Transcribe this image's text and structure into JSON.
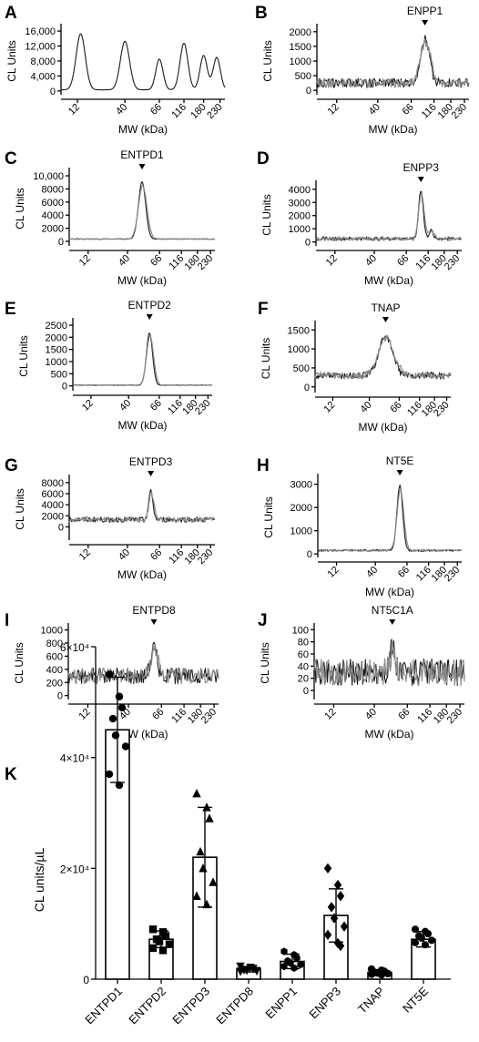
{
  "chart_data": [
    {
      "panel": "A",
      "type": "line",
      "title": "",
      "xlabel": "MW (kDa)",
      "ylabel": "CL Units",
      "yticks": [
        "16,000",
        "12,000",
        "8,000",
        "4,000",
        "0"
      ],
      "ytick_values": [
        16000,
        12000,
        8000,
        4000,
        0
      ],
      "ylim": [
        -1000,
        17000
      ],
      "xticks": [
        "12",
        "40",
        "66",
        "116",
        "180",
        "230"
      ],
      "xtick_pos": [
        0.1,
        0.39,
        0.6,
        0.75,
        0.87,
        0.97
      ],
      "peaks": [
        {
          "x": 0.12,
          "height": 15000,
          "width": 0.028
        },
        {
          "x": 0.39,
          "height": 13000,
          "width": 0.028
        },
        {
          "x": 0.6,
          "height": 8200,
          "width": 0.022
        },
        {
          "x": 0.75,
          "height": 12500,
          "width": 0.024
        },
        {
          "x": 0.87,
          "height": 9200,
          "width": 0.022
        },
        {
          "x": 0.95,
          "height": 8700,
          "width": 0.022
        }
      ],
      "baseline": 300,
      "noise": 0,
      "traces": 1
    },
    {
      "panel": "B",
      "type": "line",
      "title": "ENPP1",
      "xlabel": "MW (kDa)",
      "ylabel": "CL Units",
      "yticks": [
        "2000",
        "1500",
        "1000",
        "500",
        "0"
      ],
      "ytick_values": [
        2000,
        1500,
        1000,
        500,
        0
      ],
      "ylim": [
        -150,
        2150
      ],
      "xticks": [
        "12",
        "40",
        "66",
        "116",
        "180",
        "230"
      ],
      "xtick_pos": [
        0.13,
        0.4,
        0.62,
        0.77,
        0.88,
        0.97
      ],
      "peaks": [
        {
          "x": 0.71,
          "height": 1500,
          "width": 0.03
        }
      ],
      "baseline": 250,
      "noise": 160,
      "traces": 2,
      "marker_x": 0.71
    },
    {
      "panel": "C",
      "type": "line",
      "title": "ENTPD1",
      "xlabel": "MW (kDa)",
      "ylabel": "CL Units",
      "yticks": [
        "10,000",
        "8000",
        "6000",
        "4000",
        "2000",
        "0"
      ],
      "ytick_values": [
        10000,
        8000,
        6000,
        4000,
        2000,
        0
      ],
      "ylim": [
        -700,
        10700
      ],
      "xticks": [
        "12",
        "40",
        "66",
        "116",
        "180",
        "230"
      ],
      "xtick_pos": [
        0.13,
        0.4,
        0.62,
        0.77,
        0.88,
        0.97
      ],
      "peaks": [
        {
          "x": 0.5,
          "height": 8700,
          "width": 0.025
        }
      ],
      "baseline": 350,
      "noise": 60,
      "traces": 2,
      "marker_x": 0.5
    },
    {
      "panel": "D",
      "type": "line",
      "title": "ENPP3",
      "xlabel": "MW (kDa)",
      "ylabel": "CL Units",
      "yticks": [
        "4000",
        "3000",
        "2000",
        "1000",
        "0"
      ],
      "ytick_values": [
        4000,
        3000,
        2000,
        1000,
        0
      ],
      "ylim": [
        -300,
        4400
      ],
      "xticks": [
        "12",
        "40",
        "66",
        "116",
        "180",
        "230"
      ],
      "xtick_pos": [
        0.13,
        0.4,
        0.62,
        0.77,
        0.88,
        0.97
      ],
      "peaks": [
        {
          "x": 0.72,
          "height": 3700,
          "width": 0.016
        },
        {
          "x": 0.79,
          "height": 600,
          "width": 0.015
        }
      ],
      "baseline": 250,
      "noise": 140,
      "traces": 2,
      "marker_x": 0.72
    },
    {
      "panel": "E",
      "type": "line",
      "title": "ENTPD2",
      "xlabel": "MW (kDa)",
      "ylabel": "CL Units",
      "yticks": [
        "2500",
        "2000",
        "1500",
        "1000",
        "500",
        "0"
      ],
      "ytick_values": [
        2500,
        2000,
        1500,
        1000,
        500,
        0
      ],
      "ylim": [
        -200,
        2650
      ],
      "xticks": [
        "12",
        "40",
        "66",
        "116",
        "180",
        "230"
      ],
      "xtick_pos": [
        0.13,
        0.4,
        0.62,
        0.77,
        0.88,
        0.97
      ],
      "peaks": [
        {
          "x": 0.55,
          "height": 2150,
          "width": 0.022
        }
      ],
      "baseline": 30,
      "noise": 15,
      "traces": 2,
      "marker_x": 0.55
    },
    {
      "panel": "F",
      "type": "line",
      "title": "TNAP",
      "xlabel": "MW (kDa)",
      "ylabel": "CL Units",
      "yticks": [
        "1500",
        "1000",
        "500",
        "0"
      ],
      "ytick_values": [
        1500,
        1000,
        500,
        0
      ],
      "ylim": [
        -150,
        1650
      ],
      "xticks": [
        "12",
        "40",
        "66",
        "116",
        "180",
        "230"
      ],
      "xtick_pos": [
        0.13,
        0.4,
        0.62,
        0.77,
        0.88,
        0.97
      ],
      "peaks": [
        {
          "x": 0.52,
          "height": 1050,
          "width": 0.05
        }
      ],
      "baseline": 300,
      "noise": 90,
      "traces": 2,
      "marker_x": 0.52
    },
    {
      "panel": "G",
      "type": "line",
      "title": "ENTPD3",
      "xlabel": "MW (kDa)",
      "ylabel": "CL Units",
      "yticks": [
        "8000",
        "6000",
        "4000",
        "2000",
        "0"
      ],
      "ytick_values": [
        8000,
        6000,
        4000,
        2000,
        0
      ],
      "ylim": [
        -2400,
        8800
      ],
      "xticks": [
        "12",
        "40",
        "66",
        "116",
        "180",
        "230"
      ],
      "xtick_pos": [
        0.13,
        0.4,
        0.62,
        0.77,
        0.88,
        0.97
      ],
      "peaks": [
        {
          "x": 0.56,
          "height": 5000,
          "width": 0.015
        }
      ],
      "baseline": 1300,
      "noise": 480,
      "traces": 2,
      "marker_x": 0.56
    },
    {
      "panel": "H",
      "type": "line",
      "title": "NT5E",
      "xlabel": "MW (kDa)",
      "ylabel": "CL Units",
      "yticks": [
        "3000",
        "2000",
        "1000",
        "0"
      ],
      "ytick_values": [
        3000,
        2000,
        1000,
        0
      ],
      "ylim": [
        -150,
        3300
      ],
      "xticks": [
        "12",
        "40",
        "66",
        "116",
        "180",
        "230"
      ],
      "xtick_pos": [
        0.13,
        0.4,
        0.62,
        0.77,
        0.88,
        0.97
      ],
      "peaks": [
        {
          "x": 0.57,
          "height": 2800,
          "width": 0.02
        }
      ],
      "baseline": 150,
      "noise": 40,
      "traces": 2,
      "marker_x": 0.57
    },
    {
      "panel": "I",
      "type": "line",
      "title": "ENTPD8",
      "xlabel": "MW (kDa)",
      "ylabel": "CL Units",
      "yticks": [
        "1000",
        "800",
        "600",
        "400",
        "200",
        "0"
      ],
      "ytick_values": [
        1000,
        800,
        600,
        400,
        200,
        0
      ],
      "ylim": [
        -60,
        1050
      ],
      "xticks": [
        "12",
        "40",
        "66",
        "116",
        "180",
        "230"
      ],
      "xtick_pos": [
        0.13,
        0.4,
        0.62,
        0.77,
        0.88,
        0.97
      ],
      "peaks": [
        {
          "x": 0.57,
          "height": 450,
          "width": 0.02
        }
      ],
      "baseline": 300,
      "noise": 120,
      "traces": 2,
      "marker_x": 0.57
    },
    {
      "panel": "J",
      "type": "line",
      "title": "NT5C1A",
      "xlabel": "MW (kDa)",
      "ylabel": "CL Units",
      "yticks": [
        "100",
        "80",
        "60",
        "40",
        "20",
        "0"
      ],
      "ytick_values": [
        100,
        80,
        60,
        40,
        20,
        0
      ],
      "ylim": [
        -15,
        105
      ],
      "xticks": [
        "12",
        "40",
        "66",
        "116",
        "180",
        "230"
      ],
      "xtick_pos": [
        0.13,
        0.4,
        0.62,
        0.77,
        0.88,
        0.97
      ],
      "peaks": [
        {
          "x": 0.52,
          "height": 40,
          "width": 0.015
        }
      ],
      "baseline": 30,
      "noise": 22,
      "traces": 2,
      "marker_x": 0.52
    },
    {
      "panel": "K",
      "type": "bar",
      "title": "",
      "xlabel": "",
      "ylabel": "CL units/µL",
      "categories": [
        "ENTPD1",
        "ENTPD2",
        "ENTPD3",
        "ENTPD8",
        "ENPP1",
        "ENPP3",
        "TNAP",
        "NT5E"
      ],
      "values": [
        45000,
        7200,
        22000,
        1800,
        3200,
        11500,
        1200,
        7200
      ],
      "errors": [
        9500,
        1500,
        9000,
        500,
        1300,
        4800,
        500,
        1400
      ],
      "points": [
        [
          55000,
          51000,
          49000,
          47000,
          44000,
          42000,
          37000,
          35000
        ],
        [
          9000,
          8500,
          7800,
          7200,
          6800,
          6300,
          5600,
          5200
        ],
        [
          33500,
          31000,
          29000,
          23000,
          20000,
          17500,
          15000,
          13500
        ],
        [
          2300,
          2100,
          1900,
          1700,
          1600,
          1500,
          1400
        ],
        [
          5000,
          4400,
          3800,
          3300,
          2900,
          2600,
          2300,
          2000
        ],
        [
          20000,
          17000,
          15000,
          13000,
          11000,
          9500,
          8000,
          6500,
          6000
        ],
        [
          1800,
          1600,
          1400,
          1200,
          1100,
          1000,
          900,
          800
        ],
        [
          9000,
          8600,
          8200,
          7800,
          7400,
          7000,
          6600,
          6200
        ]
      ],
      "markers": [
        "circle",
        "square",
        "triangle",
        "down-triangle",
        "hexagon",
        "diamond",
        "circle",
        "octagon"
      ],
      "yticks": [
        "6×10⁴",
        "4×10⁴",
        "2×10⁴",
        "0"
      ],
      "ytick_values": [
        60000,
        40000,
        20000,
        0
      ],
      "ylim": [
        0,
        60000
      ]
    }
  ]
}
